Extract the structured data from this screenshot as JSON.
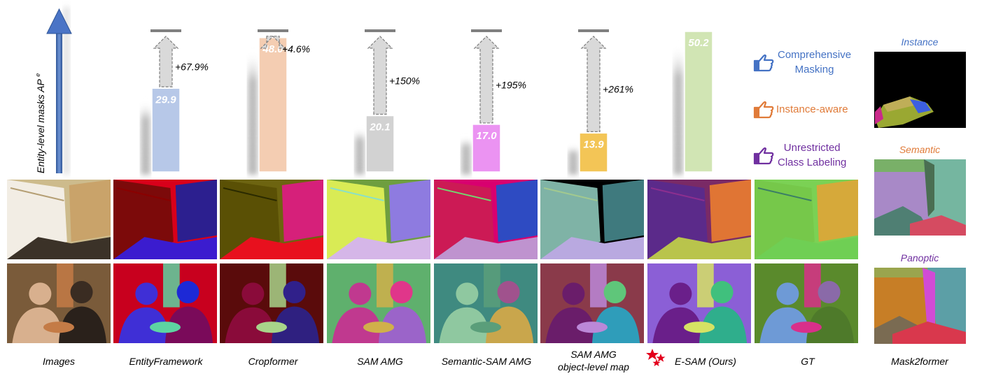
{
  "chart_data": {
    "type": "bar",
    "ylabel": "Entity-level masks AP",
    "ylabel_superscript": "e",
    "categories": [
      "EntityFramework",
      "Cropformer",
      "SAM AMG",
      "Semantic-SAM AMG",
      "SAM AMG object-level map",
      "E-SAM (Ours)"
    ],
    "values": [
      29.9,
      48.0,
      20.1,
      17.0,
      13.9,
      50.2
    ],
    "value_labels": [
      "29.9",
      "48.0",
      "20.1",
      "17.0",
      "13.9",
      "50.2"
    ],
    "improvements": [
      "+67.9%",
      "+4.6%",
      "+150%",
      "+195%",
      "+261%",
      ""
    ],
    "target": 50.2,
    "colors": [
      "#b4c6e7",
      "#f4cbae",
      "#d0d0d0",
      "#ea8ef2",
      "#f3c24d",
      "#cfe4b0"
    ]
  },
  "columns": {
    "images": "Images",
    "entity": "EntityFramework",
    "cropformer": "Cropformer",
    "samamg": "SAM AMG",
    "semsam": "Semantic-SAM AMG",
    "obj_line1": "SAM AMG",
    "obj_line2": "object-level map",
    "esam": "E-SAM (Ours)",
    "gt": "GT",
    "m2f": "Mask2former"
  },
  "legend": [
    {
      "icon": "thumbs-icon",
      "color": "#4472c4",
      "line1": "Comprehensive",
      "line2": "Masking"
    },
    {
      "icon": "thumbs-icon",
      "color": "#e07b39",
      "line1": "Instance-aware",
      "line2": ""
    },
    {
      "icon": "thumbs-icon",
      "color": "#7030a0",
      "line1": "Unrestricted",
      "line2": "Class Labeling"
    }
  ],
  "mask2former": {
    "instance": "Instance",
    "semantic": "Semantic",
    "panoptic": "Panoptic",
    "instance_color": "#4472c4",
    "semantic_color": "#e07b39",
    "panoptic_color": "#7030a0"
  }
}
